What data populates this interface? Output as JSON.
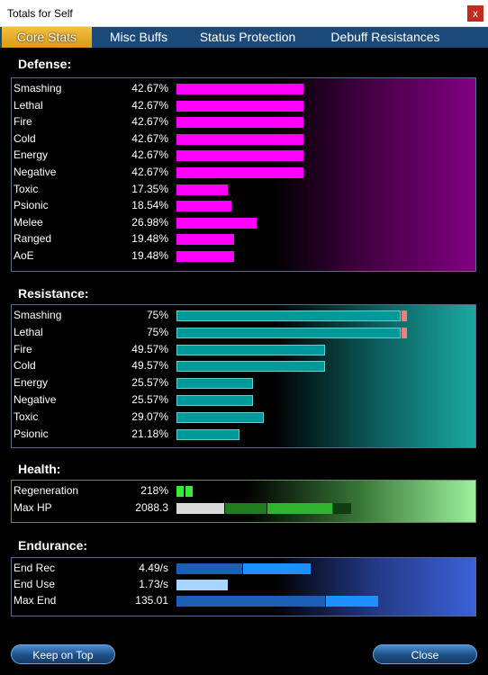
{
  "window": {
    "title": "Totals for Self",
    "close_glyph": "x"
  },
  "tabs": [
    {
      "label": "Core Stats",
      "active": true
    },
    {
      "label": "Misc Buffs",
      "active": false
    },
    {
      "label": "Status Protection",
      "active": false
    },
    {
      "label": "Debuff Resistances",
      "active": false
    }
  ],
  "colors": {
    "defense_bar": "#ff00ff",
    "resistance_bar": "#009999",
    "resistance_cap": "#f08080",
    "health_regen": "#33ee33",
    "endurance_bar": "#1e90ff"
  },
  "defense": {
    "title": "Defense:",
    "rows": [
      {
        "label": "Smashing",
        "value": "42.67%",
        "fraction": 0.4267
      },
      {
        "label": "Lethal",
        "value": "42.67%",
        "fraction": 0.4267
      },
      {
        "label": "Fire",
        "value": "42.67%",
        "fraction": 0.4267
      },
      {
        "label": "Cold",
        "value": "42.67%",
        "fraction": 0.4267
      },
      {
        "label": "Energy",
        "value": "42.67%",
        "fraction": 0.4267
      },
      {
        "label": "Negative",
        "value": "42.67%",
        "fraction": 0.4267
      },
      {
        "label": "Toxic",
        "value": "17.35%",
        "fraction": 0.1735
      },
      {
        "label": "Psionic",
        "value": "18.54%",
        "fraction": 0.1854
      },
      {
        "label": "Melee",
        "value": "26.98%",
        "fraction": 0.2698
      },
      {
        "label": "Ranged",
        "value": "19.48%",
        "fraction": 0.1948
      },
      {
        "label": "AoE",
        "value": "19.48%",
        "fraction": 0.1948
      }
    ]
  },
  "resistance": {
    "title": "Resistance:",
    "rows": [
      {
        "label": "Smashing",
        "value": "75%",
        "fraction": 0.75,
        "capped": true
      },
      {
        "label": "Lethal",
        "value": "75%",
        "fraction": 0.75,
        "capped": true
      },
      {
        "label": "Fire",
        "value": "49.57%",
        "fraction": 0.4957,
        "capped": false
      },
      {
        "label": "Cold",
        "value": "49.57%",
        "fraction": 0.4957,
        "capped": false
      },
      {
        "label": "Energy",
        "value": "25.57%",
        "fraction": 0.2557,
        "capped": false
      },
      {
        "label": "Negative",
        "value": "25.57%",
        "fraction": 0.2557,
        "capped": false
      },
      {
        "label": "Toxic",
        "value": "29.07%",
        "fraction": 0.2907,
        "capped": false
      },
      {
        "label": "Psionic",
        "value": "21.18%",
        "fraction": 0.2118,
        "capped": false
      }
    ]
  },
  "health": {
    "title": "Health:",
    "regeneration": {
      "label": "Regeneration",
      "value": "218%"
    },
    "max_hp": {
      "label": "Max HP",
      "value": "2088.3"
    }
  },
  "endurance": {
    "title": "Endurance:",
    "rows": [
      {
        "label": "End Rec",
        "value": "4.49/s"
      },
      {
        "label": "End Use",
        "value": "1.73/s"
      },
      {
        "label": "Max End",
        "value": "135.01"
      }
    ]
  },
  "footer": {
    "keep_on_top": "Keep on Top",
    "close": "Close"
  }
}
